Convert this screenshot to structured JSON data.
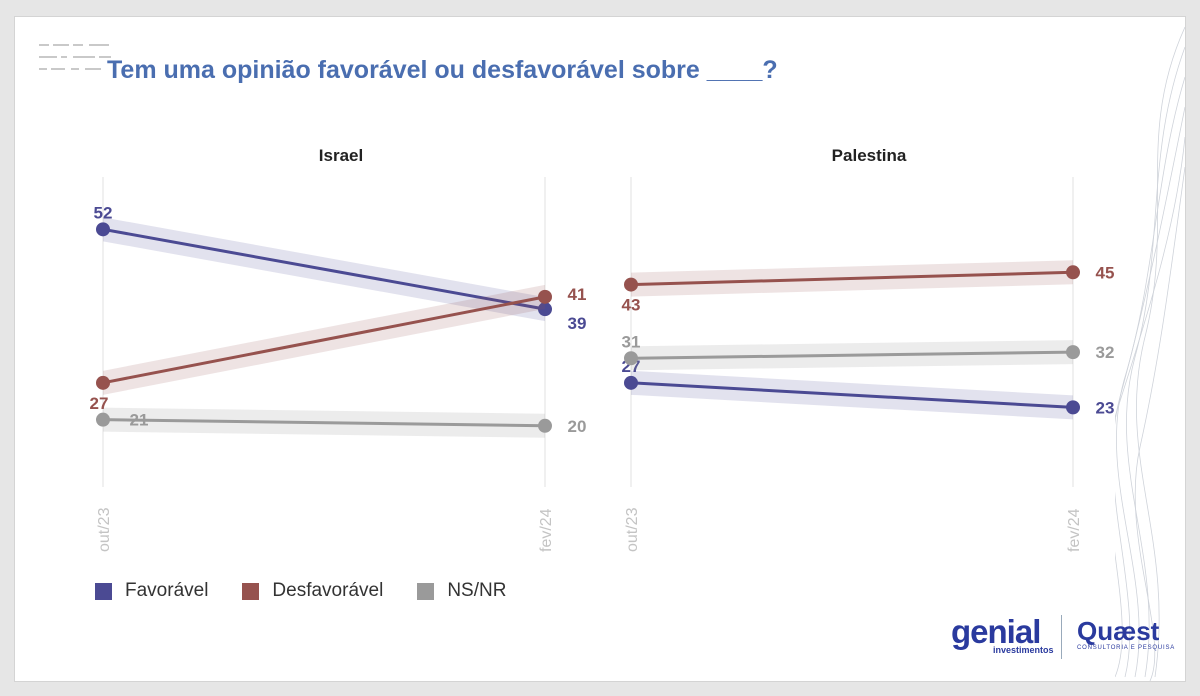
{
  "title": "Tem uma opinião favorável ou desfavorável sobre ____?",
  "legend": [
    {
      "label": "Favorável",
      "color": "#4b4a93"
    },
    {
      "label": "Desfavorável",
      "color": "#96524e"
    },
    {
      "label": "NS/NR",
      "color": "#9a9a9a"
    }
  ],
  "chart_data": [
    {
      "type": "line",
      "title": "Israel",
      "x": [
        "out/23",
        "fev/24"
      ],
      "ylim": [
        15,
        55
      ],
      "series": [
        {
          "name": "Favorável",
          "values": [
            52,
            39
          ]
        },
        {
          "name": "Desfavorável",
          "values": [
            27,
            41
          ]
        },
        {
          "name": "NS/NR",
          "values": [
            21,
            20
          ]
        }
      ]
    },
    {
      "type": "line",
      "title": "Palestina",
      "x": [
        "out/23",
        "fev/24"
      ],
      "ylim": [
        15,
        55
      ],
      "series": [
        {
          "name": "Favorável",
          "values": [
            27,
            23
          ]
        },
        {
          "name": "Desfavorável",
          "values": [
            43,
            45
          ]
        },
        {
          "name": "NS/NR",
          "values": [
            31,
            32
          ]
        }
      ]
    }
  ],
  "logos": {
    "genial": "genial",
    "genial_sub": "investimentos",
    "quaest": "Quæst",
    "quaest_sub": "CONSULTORIA E PESQUISA"
  }
}
